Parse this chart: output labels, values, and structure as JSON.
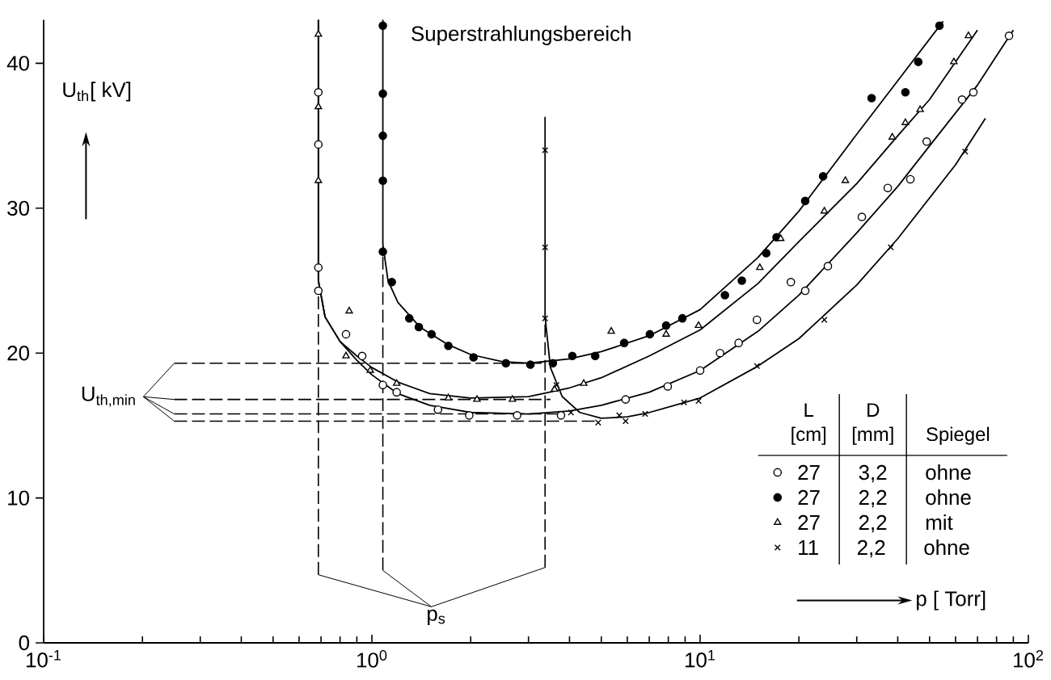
{
  "chart_data": {
    "type": "scatter",
    "xlabel": "p [ Torr]",
    "ylabel": "U$_{th}$[ kV]",
    "log": "x",
    "xlim": [
      0.1,
      100
    ],
    "ylim": [
      0,
      43
    ],
    "xticks": [
      {
        "value": 0.1,
        "label": "10$^{-1}$"
      },
      {
        "value": 1,
        "label": "10$^{0}$"
      },
      {
        "value": 10,
        "label": "10$^{1}$"
      },
      {
        "value": 100,
        "label": "10$^{2}$"
      },
      {
        "value": 0.2,
        "label": null
      },
      {
        "value": 0.3,
        "label": null
      },
      {
        "value": 0.4,
        "label": null
      },
      {
        "value": 0.5,
        "label": null
      },
      {
        "value": 0.6,
        "label": null
      },
      {
        "value": 0.7,
        "label": null
      },
      {
        "value": 0.8,
        "label": null
      },
      {
        "value": 0.9,
        "label": null
      },
      {
        "value": 2,
        "label": null
      },
      {
        "value": 3,
        "label": null
      },
      {
        "value": 4,
        "label": null
      },
      {
        "value": 5,
        "label": null
      },
      {
        "value": 6,
        "label": null
      },
      {
        "value": 7,
        "label": null
      },
      {
        "value": 8,
        "label": null
      },
      {
        "value": 9,
        "label": null
      },
      {
        "value": 20,
        "label": null
      },
      {
        "value": 30,
        "label": null
      },
      {
        "value": 40,
        "label": null
      },
      {
        "value": 50,
        "label": null
      },
      {
        "value": 60,
        "label": null
      },
      {
        "value": 70,
        "label": null
      },
      {
        "value": 80,
        "label": null
      },
      {
        "value": 90,
        "label": null
      }
    ],
    "yticks": [
      0,
      10,
      20,
      30,
      40
    ],
    "legend": "bottom right",
    "annotations": [
      "Superstrahlungsbereich",
      "U$_{th,min}$",
      {
        "text": "p$_{s}$",
        "x": 1.08,
        "y": 5.0
      },
      "L",
      "[cm]",
      "D",
      "[mm]",
      "Spiegel"
    ],
    "series": [
      {
        "type": "line",
        "line_style": "solid",
        "color": "#000000",
        "x": [
          0.687,
          0.687,
          0.72,
          0.8,
          0.9,
          1.0,
          1.2,
          1.5,
          2,
          3,
          4,
          5,
          7,
          10,
          15,
          20,
          30,
          40,
          50,
          70,
          90
        ],
        "values": [
          43,
          25,
          22.5,
          20.8,
          19.5,
          18.5,
          17.2,
          16.4,
          15.9,
          15.8,
          16.0,
          16.4,
          17.3,
          18.8,
          21.5,
          24.0,
          28.3,
          31.5,
          34.3,
          38.5,
          42.3
        ]
      },
      {
        "type": "line",
        "line_style": "solid",
        "color": "#000000",
        "x": [
          0.687,
          0.687,
          0.72,
          0.8,
          0.9,
          1.0,
          1.2,
          1.5,
          2,
          3,
          4,
          5,
          7,
          10,
          15,
          20,
          30,
          40,
          50,
          70
        ],
        "values": [
          43,
          25,
          22.5,
          20.8,
          19.8,
          19.0,
          18.0,
          17.2,
          16.9,
          17.0,
          17.6,
          18.3,
          19.8,
          21.6,
          24.8,
          27.7,
          31.7,
          35.0,
          37.5,
          42.3
        ]
      },
      {
        "type": "line",
        "line_style": "solid",
        "color": "#000000",
        "x": [
          1.08,
          1.08,
          1.12,
          1.2,
          1.4,
          1.7,
          2,
          2.5,
          3,
          4,
          5,
          7,
          10,
          15,
          20,
          30,
          40,
          55
        ],
        "values": [
          43,
          27.5,
          25,
          23.5,
          21.8,
          20.6,
          19.9,
          19.4,
          19.3,
          19.6,
          20.1,
          21.2,
          23.0,
          26.6,
          29.8,
          35.1,
          38.8,
          42.9
        ]
      },
      {
        "type": "line",
        "line_style": "solid",
        "color": "#000000",
        "x": [
          3.37,
          3.37,
          3.5,
          3.8,
          4.3,
          5,
          6,
          7,
          10,
          15,
          20,
          30,
          40,
          60,
          74
        ],
        "values": [
          36.3,
          22.5,
          19,
          17,
          15.9,
          15.5,
          15.6,
          15.9,
          16.9,
          19.1,
          21.0,
          24.7,
          27.9,
          33.0,
          36.2
        ]
      },
      {
        "type": "line",
        "line_style": "dashed",
        "color": "#000000",
        "x": [
          0.25,
          3.4
        ],
        "values": [
          19.3,
          19.3
        ]
      },
      {
        "type": "line",
        "line_style": "dashed",
        "color": "#000000",
        "x": [
          0.25,
          3.5
        ],
        "values": [
          16.8,
          16.8
        ]
      },
      {
        "type": "line",
        "line_style": "dashed",
        "color": "#000000",
        "x": [
          0.25,
          3.7
        ],
        "values": [
          15.8,
          15.8
        ]
      },
      {
        "type": "line",
        "line_style": "dashed",
        "color": "#000000",
        "x": [
          0.25,
          4.9
        ],
        "values": [
          15.3,
          15.3
        ]
      },
      {
        "type": "line",
        "line_style": "dashed",
        "color": "#000000",
        "x": [
          0.687,
          0.687
        ],
        "values": [
          4.7,
          24.3
        ]
      },
      {
        "type": "line",
        "line_style": "dashed",
        "color": "#000000",
        "x": [
          1.08,
          1.08
        ],
        "values": [
          5.0,
          27.0
        ]
      },
      {
        "type": "line",
        "line_style": "dashed",
        "color": "#000000",
        "x": [
          3.37,
          3.37
        ],
        "values": [
          5.2,
          22.4
        ]
      },
      {
        "name": "27 3,2 ohne",
        "marker": "circle-open",
        "color": "#000000",
        "x": [
          0.687,
          0.687,
          0.687,
          0.687,
          0.834,
          0.934,
          1.08,
          1.19,
          1.59,
          1.98,
          2.77,
          3.77,
          5.93,
          7.97,
          10,
          11.5,
          13.1,
          14.9,
          18.9,
          20.9,
          24.5,
          31.1,
          37.3,
          43.7,
          49,
          62.8,
          68,
          87.3
        ],
        "values": [
          38.0,
          34.4,
          25.9,
          24.3,
          21.3,
          19.8,
          17.8,
          17.3,
          16.1,
          15.7,
          15.7,
          15.7,
          16.8,
          17.7,
          18.8,
          20.0,
          20.7,
          22.3,
          24.9,
          24.3,
          26.0,
          29.4,
          31.4,
          32.0,
          34.6,
          37.5,
          38.0,
          41.9
        ]
      },
      {
        "name": "27 2,2 ohne",
        "marker": "circle",
        "color": "#000000",
        "x": [
          1.08,
          1.08,
          1.08,
          1.08,
          1.08,
          1.15,
          1.3,
          1.39,
          1.52,
          1.71,
          2.04,
          2.56,
          3.04,
          3.56,
          4.08,
          4.79,
          5.87,
          7.03,
          7.88,
          8.83,
          11.9,
          13.4,
          15.9,
          17.1,
          20.9,
          23.7,
          33.3,
          42.2,
          46.2,
          53.6
        ],
        "values": [
          42.6,
          37.9,
          35.0,
          31.9,
          27.0,
          24.9,
          22.4,
          21.8,
          21.3,
          20.5,
          19.7,
          19.3,
          19.2,
          19.3,
          19.8,
          19.8,
          20.7,
          21.3,
          21.9,
          22.4,
          24.0,
          25.0,
          26.9,
          28.0,
          30.5,
          32.2,
          37.6,
          38.0,
          40.1,
          42.6
        ]
      },
      {
        "name": "27 2,2 mit",
        "marker": "triangle-open",
        "color": "#000000",
        "x": [
          0.687,
          0.687,
          0.687,
          0.853,
          0.834,
          0.989,
          1.19,
          1.71,
          2.09,
          2.68,
          3.6,
          4.42,
          5.36,
          7.88,
          9.89,
          15.2,
          17.6,
          23.9,
          27.7,
          38.5,
          42.2,
          46.8,
          59.3,
          65.7
        ],
        "values": [
          42.0,
          37.0,
          31.9,
          22.9,
          19.8,
          18.8,
          17.9,
          16.9,
          16.8,
          16.8,
          17.5,
          17.9,
          21.5,
          21.3,
          21.9,
          25.9,
          27.9,
          29.8,
          31.9,
          34.9,
          35.9,
          36.8,
          40.1,
          41.9
        ]
      },
      {
        "name": "11 2,2 ohne",
        "marker": "cross",
        "color": "#000000",
        "x": [
          3.37,
          3.37,
          3.37,
          3.65,
          4.04,
          4.89,
          5.67,
          5.93,
          6.8,
          8.93,
          9.89,
          14.9,
          23.9,
          38.1,
          64.2
        ],
        "values": [
          34.0,
          27.3,
          22.4,
          17.8,
          15.9,
          15.2,
          15.7,
          15.3,
          15.8,
          16.6,
          16.7,
          19.1,
          22.3,
          27.3,
          33.9
        ]
      }
    ]
  }
}
